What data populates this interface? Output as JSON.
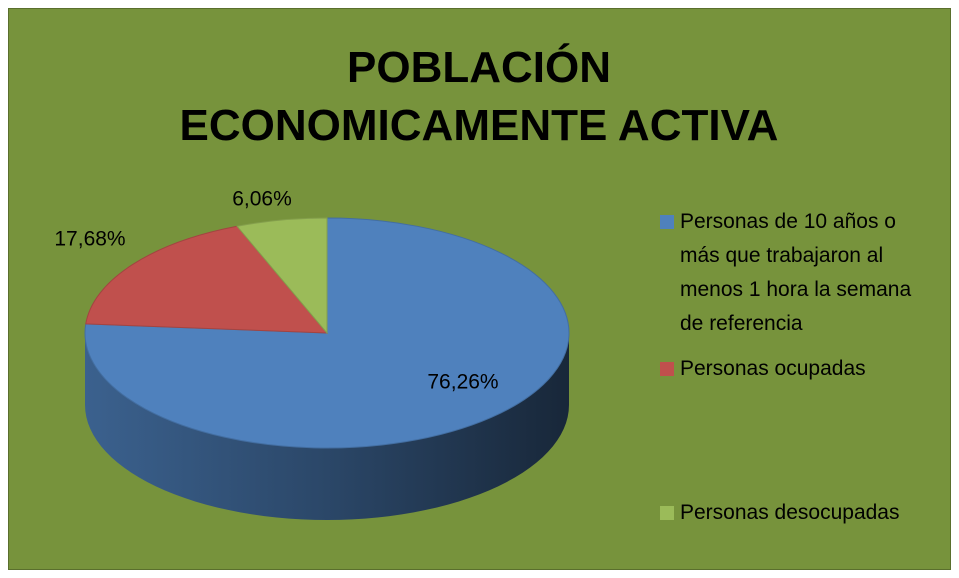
{
  "chart_data": {
    "type": "pie",
    "title": "POBLACIÓN ECONOMICAMENTE ACTIVA",
    "categories": [
      "Personas de 10 años o más que trabajaron al menos 1 hora la semana de referencia",
      "Personas ocupadas",
      "Personas desocupadas"
    ],
    "values": [
      76.26,
      17.68,
      6.06
    ],
    "value_labels": [
      "76,26%",
      "17,68%",
      "6,06%"
    ],
    "colors": [
      "#4f81bd",
      "#c0504d",
      "#9bbb59"
    ],
    "legend": "right"
  }
}
